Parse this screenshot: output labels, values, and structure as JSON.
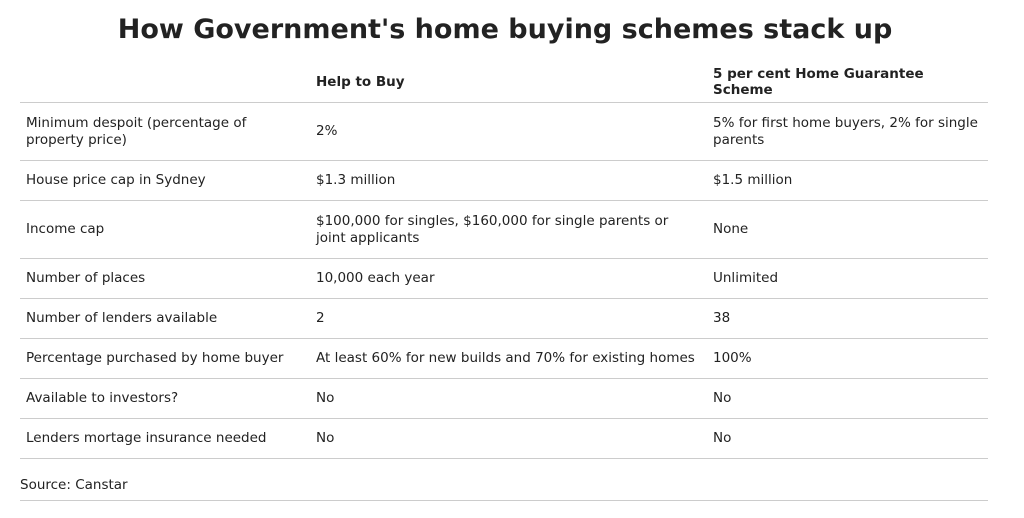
{
  "header": {
    "title": "How Government's home buying schemes stack up"
  },
  "table": {
    "columns": [
      "",
      "Help to Buy",
      "5 per cent Home Guarantee Scheme"
    ],
    "rows": [
      [
        "Minimum despoit (percentage of property price)",
        "2%",
        "5% for first home buyers, 2% for single parents"
      ],
      [
        "House price cap in Sydney",
        "$1.3 million",
        "$1.5 million"
      ],
      [
        "Income cap",
        "$100,000 for singles, $160,000 for single parents or joint applicants",
        "None"
      ],
      [
        "Number of places",
        "10,000 each year",
        "Unlimited"
      ],
      [
        "Number of lenders available",
        "2",
        "38"
      ],
      [
        "Percentage purchased by home buyer",
        "At least 60% for new builds and 70% for existing homes",
        "100%"
      ],
      [
        "Available to investors?",
        "No",
        "No"
      ],
      [
        "Lenders mortage insurance needed",
        "No",
        "No"
      ]
    ]
  },
  "footer": {
    "source": "Source: Canstar"
  }
}
